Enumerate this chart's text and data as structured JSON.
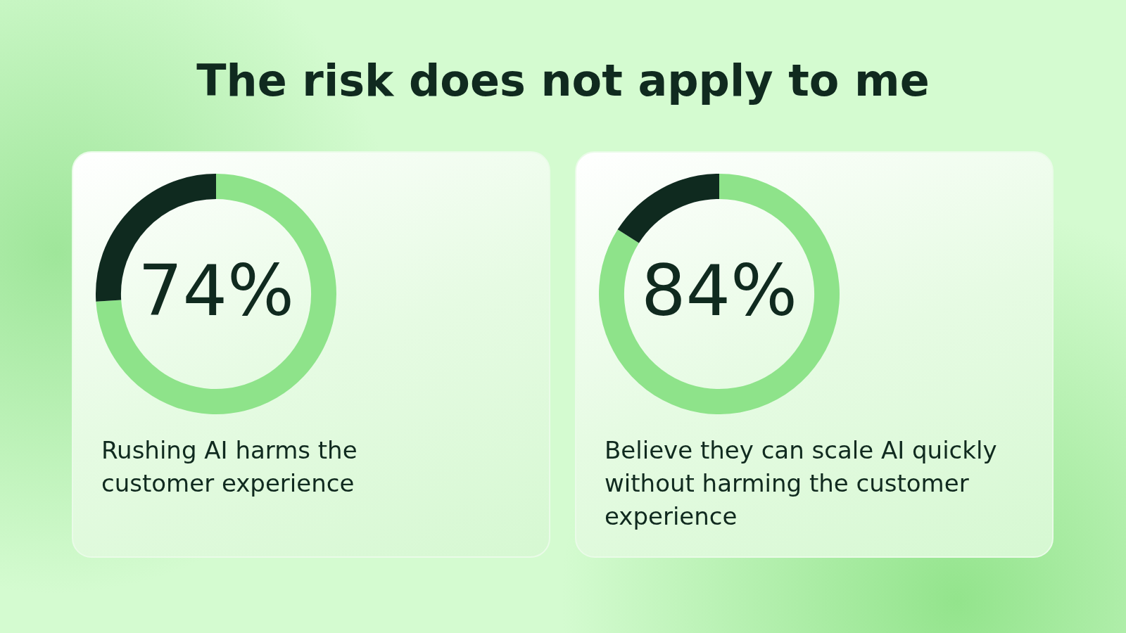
{
  "chart_data": [
    {
      "type": "donut",
      "title": "The risk does not apply to me",
      "categories": [
        null,
        null
      ],
      "values": [
        74,
        26
      ],
      "colors": [
        "#8ee38a",
        "#0f2a1f"
      ],
      "value_labels": [
        "74%",
        null
      ],
      "annotations": [
        "Rushing AI harms the customer experience"
      ]
    },
    {
      "type": "donut",
      "categories": [
        null,
        null
      ],
      "values": [
        84,
        16
      ],
      "colors": [
        "#8ee38a",
        "#0f2a1f"
      ],
      "value_labels": [
        "84%",
        null
      ],
      "annotations": [
        "Believe they can scale AI quickly without harming the customer experience"
      ]
    }
  ]
}
